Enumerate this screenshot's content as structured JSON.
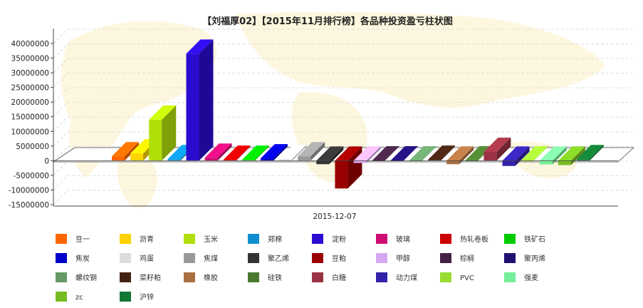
{
  "chart_data": {
    "type": "bar",
    "title": "【刘福厚02】【2015年11月排行榜】各品种投资盈亏柱状图",
    "x_category": "2015-12-07",
    "ylim": [
      -15000000,
      40000000
    ],
    "yticks": [
      "40000000",
      "35000000",
      "30000000",
      "25000000",
      "20000000",
      "15000000",
      "10000000",
      "5000000",
      "0",
      "-5000000",
      "-10000000",
      "-15000000"
    ],
    "ytick_values": [
      40000000,
      35000000,
      30000000,
      25000000,
      20000000,
      15000000,
      10000000,
      5000000,
      0,
      -5000000,
      -10000000,
      -15000000
    ],
    "grid": true,
    "legend_position": "bottom",
    "series": [
      {
        "name": "豆一",
        "color": "#ff6600",
        "value": 1500000
      },
      {
        "name": "沥青",
        "color": "#fcd202",
        "value": 2500000
      },
      {
        "name": "玉米",
        "color": "#b0de09",
        "value": 14000000
      },
      {
        "name": "郑棉",
        "color": "#0d8ecf",
        "value": 500000
      },
      {
        "name": "淀粉",
        "color": "#2a0cd0",
        "value": 36500000
      },
      {
        "name": "玻璃",
        "color": "#cd0d74",
        "value": 1000000
      },
      {
        "name": "热轧卷板",
        "color": "#cc0000",
        "value": 300000
      },
      {
        "name": "铁矿石",
        "color": "#00cc00",
        "value": 300000
      },
      {
        "name": "焦炭",
        "color": "#0000cc",
        "value": 800000
      },
      {
        "name": "鸡蛋",
        "color": "#dddddd",
        "value": 500000
      },
      {
        "name": "焦煤",
        "color": "#999999",
        "value": 1500000
      },
      {
        "name": "聚乙烯",
        "color": "#333333",
        "value": -1200000
      },
      {
        "name": "豆粕",
        "color": "#990000",
        "value": -9500000
      },
      {
        "name": "甲醇",
        "color": "#d7a8f0",
        "value": -800000
      },
      {
        "name": "棕榈",
        "color": "#442244",
        "value": 100000
      },
      {
        "name": "聚丙烯",
        "color": "#1f1074",
        "value": 100000
      },
      {
        "name": "螺纹钢",
        "color": "#669966",
        "value": 100000
      },
      {
        "name": "菜籽粕",
        "color": "#442211",
        "value": 300000
      },
      {
        "name": "橡胶",
        "color": "#aa6f40",
        "value": -1200000
      },
      {
        "name": "硅铁",
        "color": "#4a7a30",
        "value": 100000
      },
      {
        "name": "白糖",
        "color": "#993344",
        "value": 3000000
      },
      {
        "name": "动力煤",
        "color": "#3322aa",
        "value": -1800000
      },
      {
        "name": "PVC",
        "color": "#99dd33",
        "value": 100000
      },
      {
        "name": "强麦",
        "color": "#77ee99",
        "value": -1300000
      },
      {
        "name": "zc",
        "color": "#77bb22",
        "value": -1500000
      },
      {
        "name": "沪锌",
        "color": "#117733",
        "value": 500000
      }
    ]
  }
}
